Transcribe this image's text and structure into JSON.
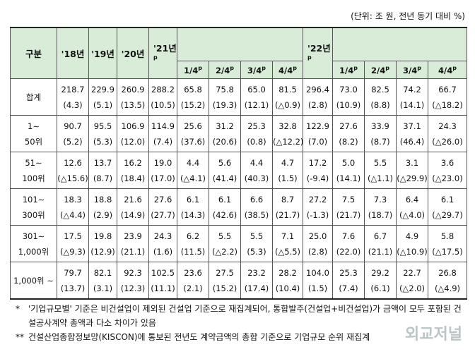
{
  "unit_note": "(단위: 조 원, 전년 동기 대비 %)",
  "table": {
    "header": {
      "label": "구분",
      "years": [
        {
          "text": "'18년"
        },
        {
          "text": "'19년"
        },
        {
          "text": "'20년"
        }
      ],
      "groups": [
        {
          "text": "'21년",
          "sup": "p",
          "quarters": [
            {
              "text": "1/4",
              "sup": "p"
            },
            {
              "text": "2/4",
              "sup": "p"
            },
            {
              "text": "3/4",
              "sup": "p"
            },
            {
              "text": "4/4",
              "sup": "p"
            }
          ]
        },
        {
          "text": "'22년",
          "sup": "p",
          "quarters": [
            {
              "text": "1/4",
              "sup": "p"
            },
            {
              "text": "2/4",
              "sup": "p"
            },
            {
              "text": "3/4",
              "sup": "p"
            },
            {
              "text": "4/4",
              "sup": "p"
            }
          ]
        }
      ]
    },
    "rows": [
      {
        "label": [
          "합계"
        ],
        "values": [
          "218.7",
          "229.9",
          "260.9",
          "288.2",
          "65.8",
          "75.8",
          "65.0",
          "81.5",
          "296.4",
          "73.0",
          "82.5",
          "74.2",
          "66.7"
        ],
        "changes": [
          "(4.3)",
          "(5.1)",
          "(13.5)",
          "(10.5)",
          "(15.2)",
          "(19.3)",
          "(12.1)",
          "(△0.9)",
          "(2.8)",
          "(10.9)",
          "(8.8)",
          "(14.1)",
          "(△18.2)"
        ]
      },
      {
        "label": [
          "1∼",
          "50위"
        ],
        "values": [
          "90.7",
          "95.5",
          "106.9",
          "114.9",
          "25.6",
          "31.2",
          "25.3",
          "32.8",
          "122.9",
          "27.6",
          "33.9",
          "37.1",
          "24.3"
        ],
        "changes": [
          "(5.2)",
          "(5.3)",
          "(12.0)",
          "(7.4)",
          "(37.6)",
          "(20.6)",
          "(0.8)",
          "(△12.2)",
          "(7.0)",
          "(8.2)",
          "(8.7)",
          "(46.4)",
          "(△26.0)"
        ]
      },
      {
        "label": [
          "51∼",
          "100위"
        ],
        "values": [
          "12.6",
          "13.7",
          "16.2",
          "19.0",
          "4.4",
          "5.6",
          "4.4",
          "4.7",
          "17.2",
          "5.0",
          "5.5",
          "3.1",
          "3.6"
        ],
        "changes": [
          "(△15.6)",
          "(8.7)",
          "(18.4)",
          "(17.0)",
          "(△4.1)",
          "(41.4)",
          "(40.3)",
          "(1.5)",
          "(-9.4)",
          "(14.1)",
          "(△1.1)",
          "(△29.9)",
          "(△23.0)"
        ]
      },
      {
        "label": [
          "101∼",
          "300위"
        ],
        "values": [
          "18.3",
          "18.8",
          "21.6",
          "27.6",
          "6.1",
          "6.1",
          "6.6",
          "8.7",
          "27.2",
          "7.5",
          "7.3",
          "6.4",
          "6.1"
        ],
        "changes": [
          "(△4.4)",
          "(2.9)",
          "(14.9)",
          "(27.7)",
          "(14.3)",
          "(42.6)",
          "(38.5)",
          "(21.7)",
          "(-1.3)",
          "(21.7)",
          "(18.7)",
          "(△4.0)",
          "(△29.7)"
        ]
      },
      {
        "label": [
          "301∼",
          "1,000위"
        ],
        "values": [
          "17.5",
          "19.8",
          "23.9",
          "24.3",
          "6.2",
          "5.5",
          "5.5",
          "7.1",
          "25.0",
          "7.6",
          "6.7",
          "4.9",
          "5.8"
        ],
        "changes": [
          "(△9.3)",
          "(12.9)",
          "(21.1)",
          "(1.6)",
          "(11.5)",
          "(△2.2)",
          "(5.3)",
          "(△5.5)",
          "(2.8)",
          "(22.0)",
          "(21.1)",
          "(△10.9)",
          "(△17.5)"
        ]
      },
      {
        "label": [
          "1,000위 ∼"
        ],
        "values": [
          "79.7",
          "82.1",
          "92.3",
          "102.5",
          "23.6",
          "27.5",
          "23.2",
          "28.2",
          "104.0",
          "25.3",
          "29.2",
          "22.7",
          "26.8"
        ],
        "changes": [
          "(13.7)",
          "(3.1)",
          "(12.3)",
          "(11.1)",
          "(2.1)",
          "(15.2)",
          "(17.4)",
          "(10.4)",
          "(1.5)",
          "(7.4)",
          "(6.1)",
          "(△2.0)",
          "(△4.9)"
        ]
      }
    ]
  },
  "notes": [
    {
      "mark": "*",
      "text": "'기업규모별' 기준은 비건설업이 제외된 건설업 기준으로 재집계되어, 통합발주(건설업+비건설업)가 금액이 모두 포함된 건설공사계약 총액과 다소 차이가 있음"
    },
    {
      "mark": "**",
      "text": "건설산업종합정보망(KISCON)에 통보된 전년도 계약금액의 총합 기준으로 기업규모 순위 재집계"
    }
  ],
  "watermark": "외교저널"
}
